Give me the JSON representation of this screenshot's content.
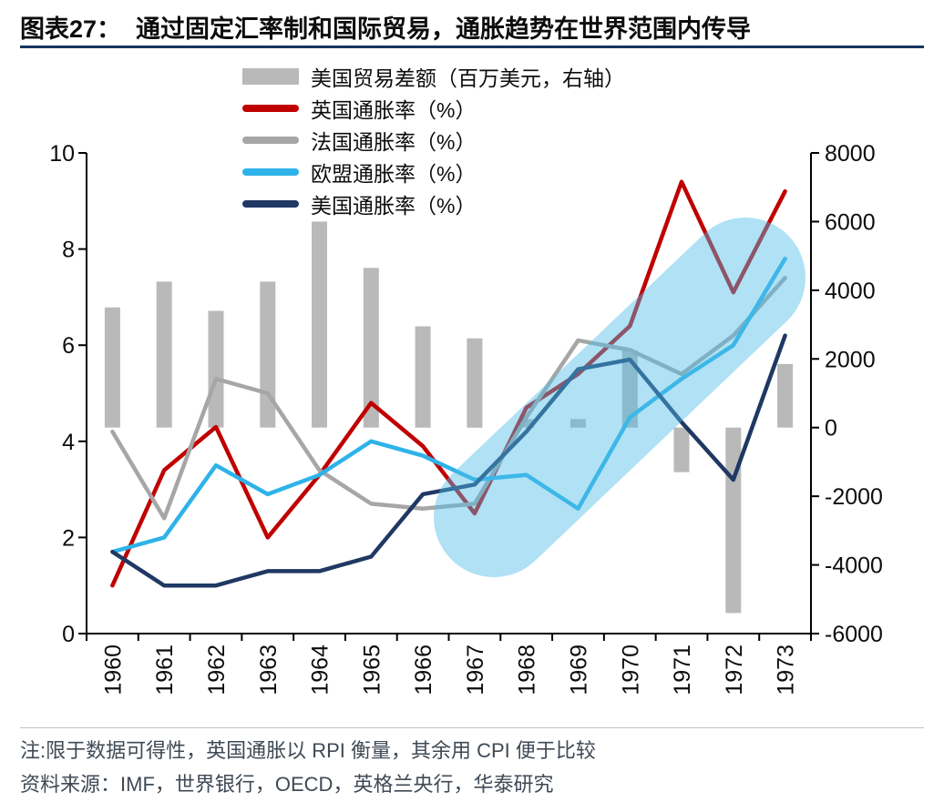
{
  "header": {
    "chart_label": "图表27：",
    "title": "通过固定汇率制和国际贸易，通胀趋势在世界范围内传导"
  },
  "legend": [
    {
      "label": "美国贸易差额（百万美元，右轴）",
      "swatch": "bar",
      "color": "#b9b9b9"
    },
    {
      "label": "英国通胀率（%）",
      "swatch": "line",
      "color": "#c00000"
    },
    {
      "label": "法国通胀率（%）",
      "swatch": "line",
      "color": "#a6a6a6"
    },
    {
      "label": "欧盟通胀率（%）",
      "swatch": "line",
      "color": "#2eb3e8"
    },
    {
      "label": "美国通胀率（%）",
      "swatch": "line",
      "color": "#1f3864"
    }
  ],
  "chart_data": {
    "type": "combo-bar-line",
    "title": "通过固定汇率制和国际贸易，通胀趋势在世界范围内传导",
    "categories": [
      "1960",
      "1961",
      "1962",
      "1963",
      "1964",
      "1965",
      "1966",
      "1967",
      "1968",
      "1969",
      "1970",
      "1971",
      "1972",
      "1973"
    ],
    "x_tick_rotation": 90,
    "grid": "off",
    "legend_position": "top",
    "left_axis": {
      "min": 0,
      "max": 10,
      "ticks": [
        0,
        2,
        4,
        6,
        8,
        10
      ]
    },
    "right_axis": {
      "min": -6000,
      "max": 8000,
      "ticks": [
        -6000,
        -4000,
        -2000,
        0,
        2000,
        4000,
        6000,
        8000
      ]
    },
    "bar_series": {
      "id": "us-trade-balance",
      "name": "美国贸易差额（百万美元，右轴）",
      "axis": "right",
      "color": "#b9b9b9",
      "values": [
        3500,
        4250,
        3400,
        4250,
        6000,
        4650,
        2950,
        2600,
        250,
        250,
        2250,
        -1300,
        -5400,
        1850
      ]
    },
    "line_series": [
      {
        "id": "uk-inflation",
        "name": "英国通胀率（%）",
        "axis": "left",
        "color": "#c00000",
        "values": [
          1.0,
          3.4,
          4.3,
          2.0,
          3.3,
          4.8,
          3.9,
          2.5,
          4.7,
          5.4,
          6.4,
          9.4,
          7.1,
          9.2
        ]
      },
      {
        "id": "france-inflation",
        "name": "法国通胀率（%）",
        "axis": "left",
        "color": "#a6a6a6",
        "values": [
          4.2,
          2.4,
          5.3,
          5.0,
          3.4,
          2.7,
          2.6,
          2.7,
          4.5,
          6.1,
          5.9,
          5.4,
          6.2,
          7.4
        ]
      },
      {
        "id": "eu-inflation",
        "name": "欧盟通胀率（%）",
        "axis": "left",
        "color": "#2eb3e8",
        "values": [
          1.7,
          2.0,
          3.5,
          2.9,
          3.3,
          4.0,
          3.7,
          3.2,
          3.3,
          2.6,
          4.5,
          5.3,
          6.0,
          7.8
        ]
      },
      {
        "id": "us-inflation",
        "name": "美国通胀率（%）",
        "axis": "left",
        "color": "#1f3864",
        "values": [
          1.7,
          1.0,
          1.0,
          1.3,
          1.3,
          1.6,
          2.9,
          3.1,
          4.2,
          5.5,
          5.7,
          4.4,
          3.2,
          6.2
        ]
      }
    ],
    "highlight": {
      "shape": "rotated-rounded-band",
      "color": "#4fbde9",
      "opacity": 0.45
    }
  },
  "footer": {
    "note": "注:限于数据可得性，英国通胀以 RPI 衡量，其余用 CPI 便于比较",
    "source": "资料来源：IMF，世界银行，OECD，英格兰央行，华泰研究"
  }
}
